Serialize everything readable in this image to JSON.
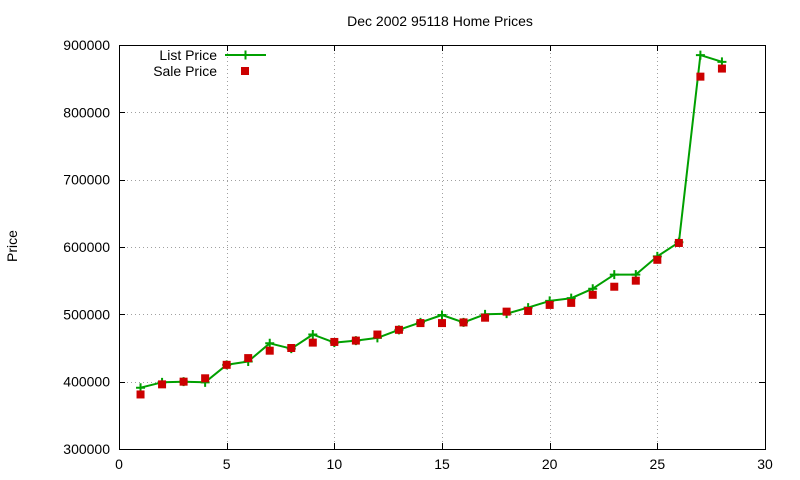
{
  "chart_data": {
    "type": "line",
    "title": "Dec 2002 95118 Home Prices",
    "xlabel": "",
    "ylabel": "Price",
    "xlim": [
      0,
      30
    ],
    "ylim": [
      300000,
      900000
    ],
    "x_ticks": [
      0,
      5,
      10,
      15,
      20,
      25,
      30
    ],
    "x_tick_labels": [
      "0",
      "5",
      "10",
      "15",
      "20",
      "25",
      "30"
    ],
    "y_ticks": [
      300000,
      400000,
      500000,
      600000,
      700000,
      800000,
      900000
    ],
    "y_tick_labels": [
      "300000",
      "400000",
      "500000",
      "600000",
      "700000",
      "800000",
      "900000"
    ],
    "grid": true,
    "legend_position": "top-left",
    "x": [
      1,
      2,
      3,
      4,
      5,
      6,
      7,
      8,
      9,
      10,
      11,
      12,
      13,
      14,
      15,
      16,
      17,
      18,
      19,
      20,
      21,
      22,
      23,
      24,
      25,
      26,
      27,
      28
    ],
    "series": [
      {
        "name": "List Price",
        "style": "line with plus markers",
        "color": "#00a000",
        "values": [
          391000,
          399000,
          400000,
          399000,
          425000,
          430000,
          457000,
          449000,
          470000,
          458000,
          461000,
          465000,
          477000,
          488000,
          499000,
          488000,
          500000,
          501000,
          510000,
          520000,
          524000,
          538000,
          559000,
          559000,
          586000,
          607000,
          885000,
          875000
        ]
      },
      {
        "name": "Sale Price",
        "style": "square markers",
        "color": "#cc0000",
        "values": [
          381000,
          396000,
          400000,
          405000,
          425000,
          435000,
          446000,
          450000,
          458000,
          459000,
          461000,
          470000,
          477000,
          487000,
          487000,
          488000,
          495000,
          504000,
          505000,
          514000,
          517000,
          529000,
          541000,
          550000,
          581000,
          606000,
          853000,
          865000
        ]
      }
    ]
  }
}
